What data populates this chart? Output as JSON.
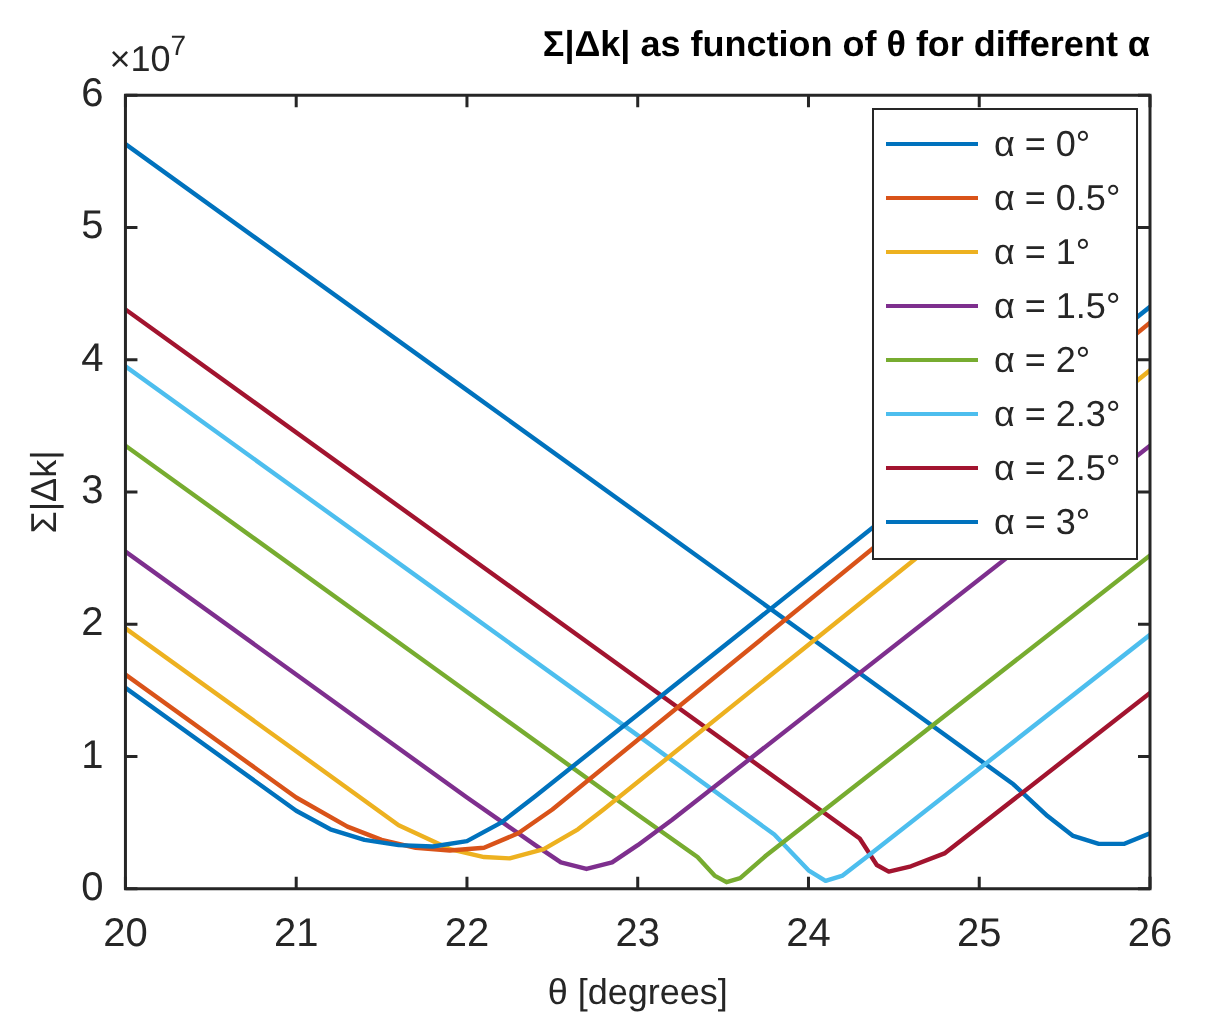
{
  "chart_data": {
    "type": "line",
    "title": "Σ|Δk| as function of θ for different α",
    "xlabel": "θ [degrees]",
    "ylabel": "Σ|Δk|",
    "annotations": [
      "×10$^{7}$"
    ],
    "xlim": [
      20,
      26
    ],
    "xticks": [
      20,
      21,
      22,
      23,
      24,
      25,
      26
    ],
    "ylim": [
      0,
      6
    ],
    "yticks": [
      0,
      1,
      2,
      3,
      4,
      5,
      6
    ],
    "grid": false,
    "legend": "top right",
    "line_style": "solid",
    "series": [
      {
        "name": "α = 0°",
        "color": "#0072bd",
        "x": [
          20,
          21,
          21.2,
          21.4,
          21.6,
          21.8,
          22,
          22.2,
          22.4,
          26
        ],
        "values": [
          1.52,
          0.59,
          0.45,
          0.37,
          0.33,
          0.32,
          0.36,
          0.5,
          0.7,
          4.4
        ]
      },
      {
        "name": "α = 0.5°",
        "color": "#d95319",
        "x": [
          20,
          21,
          21.3,
          21.5,
          21.7,
          21.9,
          22.1,
          22.3,
          22.5,
          26
        ],
        "values": [
          1.62,
          0.69,
          0.47,
          0.37,
          0.31,
          0.29,
          0.31,
          0.42,
          0.6,
          4.28
        ]
      },
      {
        "name": "α = 1°",
        "color": "#edb120",
        "x": [
          20,
          21,
          21.6,
          21.9,
          22.1,
          22.25,
          22.45,
          22.65,
          22.8,
          26
        ],
        "values": [
          1.97,
          1.04,
          0.48,
          0.3,
          0.24,
          0.23,
          0.3,
          0.45,
          0.6,
          3.92
        ]
      },
      {
        "name": "α = 1.5°",
        "color": "#7e2f8e",
        "x": [
          20,
          21,
          22,
          22.4,
          22.55,
          22.7,
          22.85,
          23,
          23.2,
          26
        ],
        "values": [
          2.55,
          1.62,
          0.69,
          0.33,
          0.2,
          0.15,
          0.2,
          0.33,
          0.52,
          3.35
        ]
      },
      {
        "name": "α = 2°",
        "color": "#77ac30",
        "x": [
          20,
          22,
          23,
          23.35,
          23.45,
          23.52,
          23.6,
          23.75,
          26
        ],
        "values": [
          3.35,
          1.49,
          0.56,
          0.24,
          0.1,
          0.05,
          0.08,
          0.25,
          2.52
        ]
      },
      {
        "name": "α = 2.3°",
        "color": "#4dbeee",
        "x": [
          20,
          22,
          23,
          23.8,
          24,
          24.1,
          24.2,
          24.35,
          26
        ],
        "values": [
          3.95,
          2.09,
          1.16,
          0.41,
          0.14,
          0.06,
          0.1,
          0.25,
          1.92
        ]
      },
      {
        "name": "α = 2.5°",
        "color": "#a2142f",
        "x": [
          20,
          22,
          23,
          24,
          24.3,
          24.4,
          24.47,
          24.6,
          24.8,
          26
        ],
        "values": [
          4.38,
          2.52,
          1.59,
          0.66,
          0.38,
          0.18,
          0.13,
          0.17,
          0.27,
          1.48
        ]
      },
      {
        "name": "α = 3°",
        "color": "#0072bd",
        "x": [
          20,
          22,
          24,
          25.2,
          25.4,
          25.55,
          25.7,
          25.85,
          26
        ],
        "values": [
          5.63,
          3.77,
          1.91,
          0.79,
          0.55,
          0.4,
          0.34,
          0.34,
          0.42
        ]
      }
    ]
  }
}
